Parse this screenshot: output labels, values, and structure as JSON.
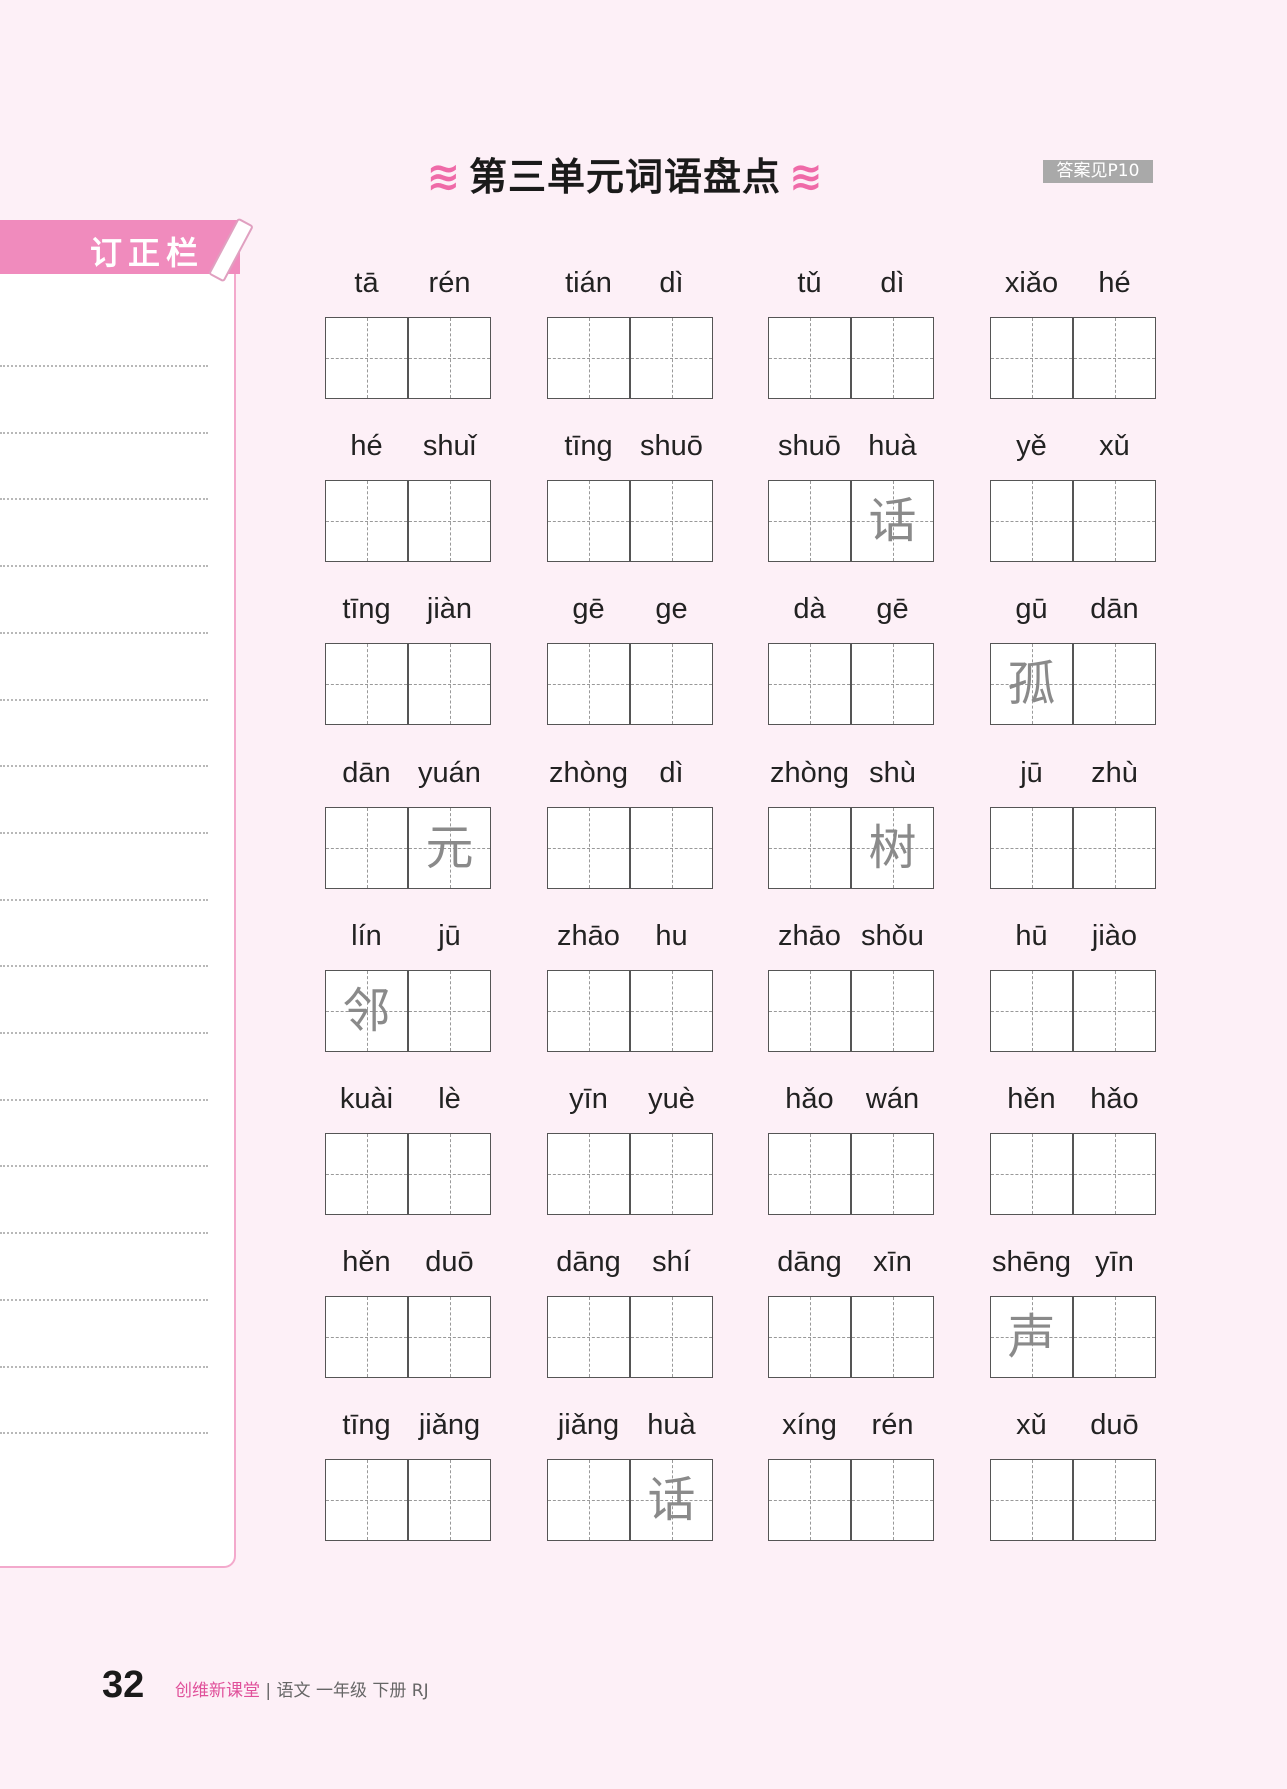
{
  "header": {
    "title": "第三单元词语盘点",
    "answer_ref": "答案见P10",
    "accent": "#ef6aa8"
  },
  "correction_panel": {
    "label": "订正栏",
    "lines": 17
  },
  "words": [
    {
      "pinyin": [
        "tā",
        "rén"
      ],
      "chars": [
        "",
        ""
      ]
    },
    {
      "pinyin": [
        "tián",
        "dì"
      ],
      "chars": [
        "",
        ""
      ]
    },
    {
      "pinyin": [
        "tǔ",
        "dì"
      ],
      "chars": [
        "",
        ""
      ]
    },
    {
      "pinyin": [
        "xiǎo",
        "hé"
      ],
      "chars": [
        "",
        ""
      ]
    },
    {
      "pinyin": [
        "hé",
        "shuǐ"
      ],
      "chars": [
        "",
        ""
      ]
    },
    {
      "pinyin": [
        "tīng",
        "shuō"
      ],
      "chars": [
        "",
        ""
      ]
    },
    {
      "pinyin": [
        "shuō",
        "huà"
      ],
      "chars": [
        "",
        "话"
      ]
    },
    {
      "pinyin": [
        "yě",
        "xǔ"
      ],
      "chars": [
        "",
        ""
      ]
    },
    {
      "pinyin": [
        "tīng",
        "jiàn"
      ],
      "chars": [
        "",
        ""
      ]
    },
    {
      "pinyin": [
        "gē",
        "ge"
      ],
      "chars": [
        "",
        ""
      ]
    },
    {
      "pinyin": [
        "dà",
        "gē"
      ],
      "chars": [
        "",
        ""
      ]
    },
    {
      "pinyin": [
        "gū",
        "dān"
      ],
      "chars": [
        "孤",
        ""
      ]
    },
    {
      "pinyin": [
        "dān",
        "yuán"
      ],
      "chars": [
        "",
        "元"
      ]
    },
    {
      "pinyin": [
        "zhòng",
        "dì"
      ],
      "chars": [
        "",
        ""
      ]
    },
    {
      "pinyin": [
        "zhòng",
        "shù"
      ],
      "chars": [
        "",
        "树"
      ]
    },
    {
      "pinyin": [
        "jū",
        "zhù"
      ],
      "chars": [
        "",
        ""
      ]
    },
    {
      "pinyin": [
        "lín",
        "jū"
      ],
      "chars": [
        "邻",
        ""
      ]
    },
    {
      "pinyin": [
        "zhāo",
        "hu"
      ],
      "chars": [
        "",
        ""
      ]
    },
    {
      "pinyin": [
        "zhāo",
        "shǒu"
      ],
      "chars": [
        "",
        ""
      ]
    },
    {
      "pinyin": [
        "hū",
        "jiào"
      ],
      "chars": [
        "",
        ""
      ]
    },
    {
      "pinyin": [
        "kuài",
        "lè"
      ],
      "chars": [
        "",
        ""
      ]
    },
    {
      "pinyin": [
        "yīn",
        "yuè"
      ],
      "chars": [
        "",
        ""
      ]
    },
    {
      "pinyin": [
        "hǎo",
        "wán"
      ],
      "chars": [
        "",
        ""
      ]
    },
    {
      "pinyin": [
        "hěn",
        "hǎo"
      ],
      "chars": [
        "",
        ""
      ]
    },
    {
      "pinyin": [
        "hěn",
        "duō"
      ],
      "chars": [
        "",
        ""
      ]
    },
    {
      "pinyin": [
        "dāng",
        "shí"
      ],
      "chars": [
        "",
        ""
      ]
    },
    {
      "pinyin": [
        "dāng",
        "xīn"
      ],
      "chars": [
        "",
        ""
      ]
    },
    {
      "pinyin": [
        "shēng",
        "yīn"
      ],
      "chars": [
        "声",
        ""
      ]
    },
    {
      "pinyin": [
        "tīng",
        "jiǎng"
      ],
      "chars": [
        "",
        ""
      ]
    },
    {
      "pinyin": [
        "jiǎng",
        "huà"
      ],
      "chars": [
        "",
        "话"
      ]
    },
    {
      "pinyin": [
        "xíng",
        "rén"
      ],
      "chars": [
        "",
        ""
      ]
    },
    {
      "pinyin": [
        "xǔ",
        "duō"
      ],
      "chars": [
        "",
        ""
      ]
    }
  ],
  "footer": {
    "page_number": "32",
    "brand": "创维新课堂",
    "separator": "|",
    "subject": "语文  一年级  下册  RJ"
  }
}
